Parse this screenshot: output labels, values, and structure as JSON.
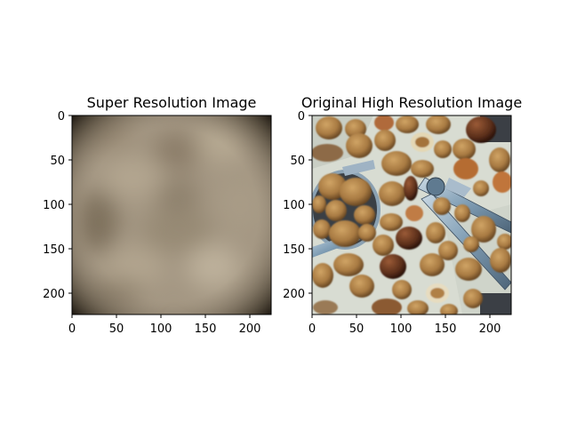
{
  "figure": {
    "panels": [
      {
        "title": "Super Resolution Image",
        "xticks": [
          "0",
          "50",
          "100",
          "150",
          "200"
        ],
        "yticks": [
          "0",
          "50",
          "100",
          "150",
          "200"
        ],
        "content": "blurred-image"
      },
      {
        "title": "Original High Resolution Image",
        "xticks": [
          "0",
          "50",
          "100",
          "150",
          "200"
        ],
        "yticks": [
          "0",
          "50",
          "100",
          "150",
          "200"
        ],
        "content": "walnuts-photo"
      }
    ],
    "colors": {
      "blur_base": "#a49783",
      "blur_edge": "#2a241b",
      "photo_bg": "#d8dcd2",
      "walnut": "#a87a42",
      "walnut_dark": "#5b3c1c",
      "chestnut": "#5a2e1a",
      "metal": "#7f9db4"
    }
  }
}
